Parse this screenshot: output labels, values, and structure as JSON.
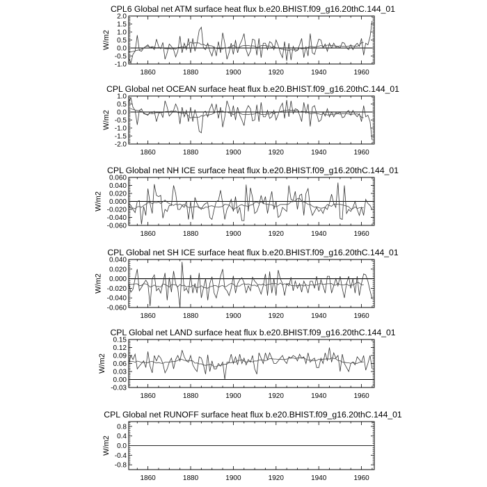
{
  "chart_data": [
    {
      "type": "line",
      "title": "CPL6 Global net ATM surface heat flux b.e20.BHIST.f09_g16.20thC.144_01",
      "ylabel": "W/m2",
      "xlim": [
        1851,
        1966
      ],
      "ylim": [
        -1.0,
        2.0
      ],
      "xticks": [
        "1860",
        "1880",
        "1900",
        "1920",
        "1940",
        "1960"
      ],
      "yticks": [
        "2.0",
        "1.5",
        "1.0",
        "0.5",
        "0.0",
        "-0.5",
        "-1.0"
      ],
      "start_year": 1851,
      "reference_line": 0,
      "values": [
        -0.6,
        -0.95,
        -0.4,
        -0.2,
        0.8,
        -0.15,
        -0.2,
        0.0,
        0.1,
        0.2,
        0.0,
        0.05,
        -0.1,
        0.55,
        0.1,
        -0.05,
        0.35,
        -0.7,
        -0.3,
        0.25,
        0.1,
        -0.1,
        -0.55,
        -0.2,
        0.75,
        -0.3,
        0.3,
        -0.1,
        0.6,
        -0.3,
        0.6,
        -0.2,
        0.3,
        1.1,
        1.3,
        0.0,
        -0.1,
        0.3,
        -0.2,
        -0.5,
        0.1,
        -0.5,
        0.4,
        -0.3,
        0.95,
        0.3,
        -0.7,
        -0.3,
        0.3,
        -0.4,
        0.5,
        -0.3,
        0.2,
        0.5,
        0.9,
        -0.1,
        -0.5,
        -0.2,
        0.55,
        0.5,
        -0.45,
        0.6,
        -0.6,
        0.3,
        0.3,
        -0.1,
        0.4,
        0.3,
        -0.1,
        0.5,
        0.15,
        -0.3,
        -0.6,
        0.4,
        -0.8,
        0.3,
        -0.75,
        0.1,
        -0.2,
        -0.15,
        0.2,
        0.6,
        -0.6,
        0.1,
        -0.5,
        0.9,
        -0.3,
        -0.4,
        0.1,
        0.55,
        0.5,
        0.0,
        0.25,
        -0.2,
        0.3,
        0.0,
        0.3,
        0.05,
        0.1,
        0.0,
        0.35,
        0.3,
        0.0,
        -0.1,
        0.2,
        -0.1,
        0.15,
        0.3,
        0.1,
        0.6,
        -0.45,
        0.3,
        0.2,
        0.7,
        1.7
      ]
    },
    {
      "type": "line",
      "title": "CPL Global net OCEAN surface heat flux b.e20.BHIST.f09_g16.20thC.144_01",
      "ylabel": "W/m2",
      "xlim": [
        1851,
        1966
      ],
      "ylim": [
        -2.0,
        1.0
      ],
      "xticks": [
        "1860",
        "1880",
        "1900",
        "1920",
        "1940",
        "1960"
      ],
      "yticks": [
        "1.0",
        "0.5",
        "0.0",
        "-0.5",
        "-1.0",
        "-1.5",
        "-2.0"
      ],
      "start_year": 1851,
      "reference_line": 0,
      "values": [
        0.6,
        0.9,
        0.3,
        0.1,
        -0.8,
        0.1,
        0.2,
        -0.1,
        -0.15,
        -0.2,
        0.0,
        -0.05,
        0.05,
        -0.6,
        -0.1,
        0.0,
        -0.35,
        0.7,
        0.3,
        -0.25,
        -0.1,
        0.1,
        0.5,
        0.2,
        -0.75,
        0.3,
        -0.3,
        0.1,
        -0.6,
        0.3,
        -0.6,
        0.15,
        -0.3,
        -1.2,
        -1.3,
        0.0,
        0.05,
        -0.3,
        0.2,
        0.5,
        -0.1,
        0.5,
        -0.4,
        0.3,
        -0.95,
        -0.3,
        0.7,
        0.3,
        -0.3,
        0.4,
        -0.5,
        0.3,
        -0.2,
        -0.5,
        -0.85,
        0.1,
        0.4,
        0.2,
        -0.55,
        -0.5,
        0.45,
        -0.6,
        0.6,
        -0.3,
        -0.3,
        0.1,
        -0.4,
        -0.3,
        0.1,
        -0.5,
        -0.15,
        0.3,
        0.55,
        -0.4,
        0.75,
        -0.3,
        0.7,
        -0.1,
        0.2,
        0.15,
        -0.2,
        -0.6,
        0.6,
        -0.1,
        0.5,
        -0.9,
        0.3,
        0.4,
        -0.1,
        -0.6,
        -0.5,
        0.0,
        -0.25,
        0.2,
        -0.3,
        0.0,
        -0.3,
        -0.05,
        -0.1,
        0.0,
        -0.35,
        -0.3,
        0.0,
        0.1,
        -0.2,
        0.1,
        -0.15,
        -0.3,
        -0.1,
        -0.6,
        0.4,
        -0.3,
        -0.2,
        -0.6,
        -1.75
      ]
    },
    {
      "type": "line",
      "title": "CPL Global net NH ICE surface heat flux b.e20.BHIST.f09_g16.20thC.144_01",
      "ylabel": "W/m2",
      "xlim": [
        1851,
        1966
      ],
      "ylim": [
        -0.06,
        0.06
      ],
      "xticks": [
        "1860",
        "1880",
        "1900",
        "1920",
        "1940",
        "1960"
      ],
      "yticks": [
        "0.060",
        "0.040",
        "0.020",
        "0.000",
        "-0.020",
        "-0.040",
        "-0.060"
      ],
      "start_year": 1851,
      "reference_line": 0,
      "values": [
        -0.005,
        -0.01,
        -0.02,
        -0.028,
        0.0,
        0.002,
        -0.057,
        -0.013,
        -0.035,
        0.032,
        -0.005,
        -0.03,
        0.043,
        0.015,
        0.012,
        0.015,
        -0.042,
        -0.02,
        -0.025,
        -0.01,
        -0.01,
        0.04,
        0.02,
        -0.02,
        -0.02,
        -0.01,
        -0.015,
        0.0,
        -0.045,
        0.0,
        -0.045,
        0.01,
        -0.005,
        -0.015,
        -0.02,
        -0.01,
        -0.005,
        -0.003,
        -0.04,
        -0.045,
        -0.02,
        0.0,
        0.002,
        0.028,
        -0.005,
        -0.045,
        -0.02,
        -0.01,
        0.005,
        -0.025,
        0.012,
        -0.03,
        -0.015,
        -0.048,
        -0.048,
        0.042,
        -0.025,
        0.034,
        0.01,
        -0.03,
        -0.025,
        -0.01,
        0.015,
        -0.005,
        0.012,
        -0.03,
        0.0,
        0.025,
        -0.02,
        0.0,
        -0.04,
        -0.035,
        -0.015,
        -0.02,
        -0.025,
        0.04,
        0.005,
        0.002,
        0.025,
        -0.02,
        0.015,
        0.018,
        -0.035,
        0.02,
        0.032,
        -0.015,
        -0.035,
        -0.025,
        -0.015,
        -0.025,
        -0.02,
        -0.03,
        -0.015,
        -0.02,
        -0.005,
        0.018,
        -0.005,
        -0.015,
        0.047,
        -0.043,
        -0.045,
        0.04,
        -0.03,
        -0.02,
        -0.025,
        -0.015,
        0.0,
        -0.02,
        -0.035,
        -0.015,
        -0.035,
        0.005,
        -0.005,
        -0.01,
        -0.02
      ]
    },
    {
      "type": "line",
      "title": "CPL Global net SH ICE surface heat flux b.e20.BHIST.f09_g16.20thC.144_01",
      "ylabel": "W/m2",
      "xlim": [
        1851,
        1966
      ],
      "ylim": [
        -0.06,
        0.04
      ],
      "xticks": [
        "1860",
        "1880",
        "1900",
        "1920",
        "1940",
        "1960"
      ],
      "yticks": [
        "0.040",
        "0.020",
        "0.000",
        "-0.020",
        "-0.040",
        "-0.060"
      ],
      "start_year": 1851,
      "reference_line": 0,
      "values": [
        -0.01,
        -0.028,
        -0.022,
        0.0,
        0.02,
        -0.025,
        -0.018,
        -0.01,
        -0.003,
        -0.01,
        -0.057,
        0.0,
        0.008,
        -0.025,
        -0.02,
        -0.03,
        -0.01,
        0.012,
        -0.045,
        0.002,
        -0.028,
        0.016,
        -0.01,
        -0.02,
        -0.06,
        0.035,
        -0.025,
        -0.02,
        -0.03,
        0.008,
        -0.03,
        -0.01,
        -0.03,
        0.012,
        -0.04,
        -0.02,
        0.0,
        -0.045,
        -0.01,
        0.004,
        -0.03,
        -0.04,
        -0.02,
        0.005,
        0.02,
        -0.02,
        -0.025,
        -0.035,
        -0.02,
        0.006,
        -0.03,
        -0.01,
        -0.002,
        0.002,
        -0.008,
        -0.03,
        -0.015,
        -0.025,
        0.003,
        -0.005,
        -0.01,
        -0.02,
        -0.032,
        -0.015,
        0.01,
        -0.035,
        0.015,
        -0.03,
        0.0,
        -0.035,
        0.018,
        0.0,
        -0.01,
        -0.035,
        -0.01,
        -0.015,
        0.003,
        -0.025,
        -0.005,
        -0.02,
        -0.01,
        -0.028,
        -0.005,
        -0.015,
        -0.03,
        -0.005,
        -0.005,
        -0.02,
        0.005,
        -0.025,
        -0.002,
        -0.015,
        -0.03,
        0.005,
        0.005,
        -0.03,
        -0.015,
        0.0,
        -0.015,
        0.005,
        -0.02,
        -0.04,
        -0.01,
        0.005,
        -0.02,
        0.0,
        -0.03,
        0.005,
        -0.035,
        -0.01,
        0.01,
        0.008,
        -0.005,
        -0.025,
        -0.042
      ]
    },
    {
      "type": "line",
      "title": "CPL Global net LAND surface heat flux b.e20.BHIST.f09_g16.20thC.144_01",
      "ylabel": "W/m2",
      "xlim": [
        1851,
        1966
      ],
      "ylim": [
        -0.03,
        0.15
      ],
      "xticks": [
        "1860",
        "1880",
        "1900",
        "1920",
        "1940",
        "1960"
      ],
      "yticks": [
        "0.15",
        "0.12",
        "0.09",
        "0.06",
        "0.03",
        "0.00",
        "-0.03"
      ],
      "start_year": 1851,
      "reference_line": 0,
      "values": [
        0.06,
        0.09,
        0.075,
        0.095,
        0.04,
        0.05,
        0.06,
        0.07,
        0.045,
        0.105,
        0.05,
        0.025,
        0.09,
        0.07,
        0.09,
        0.08,
        0.06,
        0.025,
        0.04,
        0.065,
        0.08,
        0.04,
        0.075,
        0.09,
        0.07,
        0.11,
        0.085,
        0.07,
        0.065,
        0.09,
        0.055,
        0.04,
        0.03,
        0.085,
        0.08,
        0.055,
        0.02,
        0.093,
        0.03,
        0.07,
        0.04,
        0.04,
        0.06,
        0.05,
        0.065,
        0.0,
        0.065,
        0.065,
        0.095,
        0.06,
        0.085,
        0.055,
        0.095,
        0.06,
        0.08,
        0.055,
        0.075,
        0.065,
        0.09,
        0.04,
        0.02,
        0.1,
        0.08,
        0.06,
        0.1,
        0.075,
        0.1,
        0.08,
        0.06,
        0.06,
        0.07,
        0.08,
        0.09,
        0.07,
        0.06,
        0.085,
        0.08,
        0.09,
        0.085,
        0.07,
        0.095,
        0.08,
        0.085,
        0.06,
        0.1,
        0.065,
        0.075,
        0.08,
        0.045,
        0.045,
        0.08,
        0.06,
        0.1,
        0.07,
        0.12,
        0.065,
        0.1,
        0.08,
        0.09,
        0.03,
        0.095,
        0.06,
        0.045,
        0.03,
        0.06,
        0.065,
        0.055,
        0.085,
        0.075,
        0.065,
        0.09,
        0.035,
        0.06,
        0.09,
        0.04
      ]
    },
    {
      "type": "line",
      "title": "CPL Global net RUNOFF surface heat flux b.e20.BHIST.f09_g16.20thC.144_01",
      "ylabel": "W/m2",
      "xlim": [
        1851,
        1966
      ],
      "ylim": [
        -1.0,
        1.0
      ],
      "xticks": [
        "1860",
        "1880",
        "1900",
        "1920",
        "1940",
        "1960"
      ],
      "yticks": [
        "0.8",
        "0.4",
        "0.0",
        "-0.4",
        "-0.8"
      ],
      "start_year": 1851,
      "reference_line": 0,
      "constant_value": 0
    }
  ]
}
